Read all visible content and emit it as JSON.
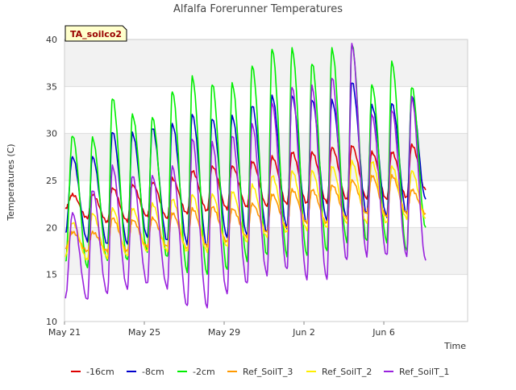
{
  "chart_data": {
    "type": "line",
    "title": "Alfalfa Forerunner Temperatures",
    "xlabel": "Time",
    "ylabel": "Temperatures (C)",
    "station_label": "TA_soilco2",
    "ylim": [
      10,
      40
    ],
    "yticks": [
      10,
      15,
      20,
      25,
      30,
      35,
      40
    ],
    "xlim": [
      0,
      20.2
    ],
    "xticks": [
      {
        "label": "May 21",
        "day": 0
      },
      {
        "label": "May 25",
        "day": 4
      },
      {
        "label": "May 29",
        "day": 8
      },
      {
        "label": "Jun 2",
        "day": 12
      },
      {
        "label": "Jun 6",
        "day": 16
      }
    ],
    "bands": [
      [
        15,
        20
      ],
      [
        25,
        30
      ],
      [
        35,
        40
      ]
    ],
    "legend_position": "bottom",
    "peak_day": [
      0.4,
      1.4,
      2.4,
      3.4,
      4.4,
      5.4,
      6.4,
      7.4,
      8.4,
      9.4,
      10.4,
      11.4,
      12.4,
      13.4,
      14.4,
      15.4,
      16.4,
      17.4
    ],
    "series": [
      {
        "name": "-16cm",
        "color": "#dd0000",
        "trough": [
          22.0,
          21.0,
          20.6,
          20.7,
          21.2,
          21.0,
          21.5,
          21.8,
          22.0,
          22.2,
          22.3,
          22.5,
          22.6,
          22.7,
          23.0,
          23.1,
          23.0,
          23.2,
          24.0
        ],
        "peak": [
          23.5,
          23.5,
          24.2,
          24.5,
          24.8,
          25.2,
          26.0,
          26.5,
          26.5,
          27.0,
          27.5,
          28.0,
          28.0,
          28.5,
          28.7,
          28.0,
          28.0,
          28.8
        ]
      },
      {
        "name": "-8cm",
        "color": "#0000cc",
        "trough": [
          19.4,
          18.6,
          18.2,
          18.3,
          19.0,
          18.6,
          18.3,
          18.0,
          19.0,
          19.2,
          19.5,
          20.0,
          20.4,
          20.8,
          21.0,
          21.5,
          21.2,
          21.5,
          23.0
        ],
        "peak": [
          27.5,
          27.5,
          30.2,
          30.0,
          30.6,
          31.0,
          32.0,
          31.6,
          31.8,
          33.0,
          34.0,
          34.0,
          33.6,
          33.5,
          35.5,
          33.0,
          33.2,
          34.0
        ]
      },
      {
        "name": "-2cm",
        "color": "#00ee00",
        "trough": [
          16.3,
          15.8,
          16.5,
          16.5,
          17.5,
          16.8,
          15.3,
          15.0,
          15.5,
          16.5,
          17.0,
          17.0,
          17.0,
          17.5,
          18.5,
          18.5,
          18.5,
          17.5,
          20.0
        ],
        "peak": [
          29.8,
          29.5,
          33.8,
          32.0,
          31.7,
          34.5,
          36.0,
          35.3,
          35.3,
          37.2,
          39.0,
          39.0,
          37.5,
          39.0,
          39.5,
          35.2,
          37.6,
          35.0
        ]
      },
      {
        "name": "Ref_SoilT_3",
        "color": "#ff9900",
        "trough": [
          17.8,
          17.5,
          17.5,
          17.5,
          18.0,
          18.0,
          17.8,
          18.0,
          18.5,
          19.0,
          19.5,
          20.0,
          20.5,
          20.5,
          21.0,
          21.5,
          21.2,
          21.5,
          21.5
        ],
        "peak": [
          19.5,
          19.5,
          21.0,
          20.8,
          21.0,
          21.5,
          22.0,
          22.2,
          22.0,
          22.5,
          23.5,
          24.0,
          24.0,
          24.5,
          25.0,
          25.5,
          25.5,
          24.0
        ]
      },
      {
        "name": "Ref_SoilT_2",
        "color": "#ffee00",
        "trough": [
          17.0,
          16.6,
          16.8,
          17.0,
          17.5,
          17.5,
          17.5,
          17.5,
          18.0,
          18.5,
          19.0,
          19.5,
          19.8,
          20.0,
          20.5,
          20.5,
          20.5,
          21.0,
          21.0
        ],
        "peak": [
          20.5,
          21.5,
          22.0,
          22.0,
          22.5,
          23.0,
          23.5,
          23.5,
          23.8,
          24.5,
          25.5,
          26.0,
          26.0,
          26.5,
          27.0,
          27.0,
          26.5,
          26.0
        ]
      },
      {
        "name": "Ref_SoilT_1",
        "color": "#9922dd",
        "trough": [
          12.6,
          12.3,
          13.0,
          13.5,
          14.0,
          13.6,
          11.6,
          11.5,
          13.0,
          14.0,
          15.0,
          15.5,
          14.5,
          14.5,
          16.5,
          17.0,
          17.0,
          17.0,
          16.5
        ],
        "peak": [
          21.5,
          24.0,
          26.5,
          25.5,
          25.5,
          26.5,
          29.5,
          29.0,
          29.8,
          31.0,
          33.2,
          35.0,
          35.0,
          36.0,
          39.5,
          32.0,
          32.5,
          33.8
        ]
      }
    ]
  }
}
